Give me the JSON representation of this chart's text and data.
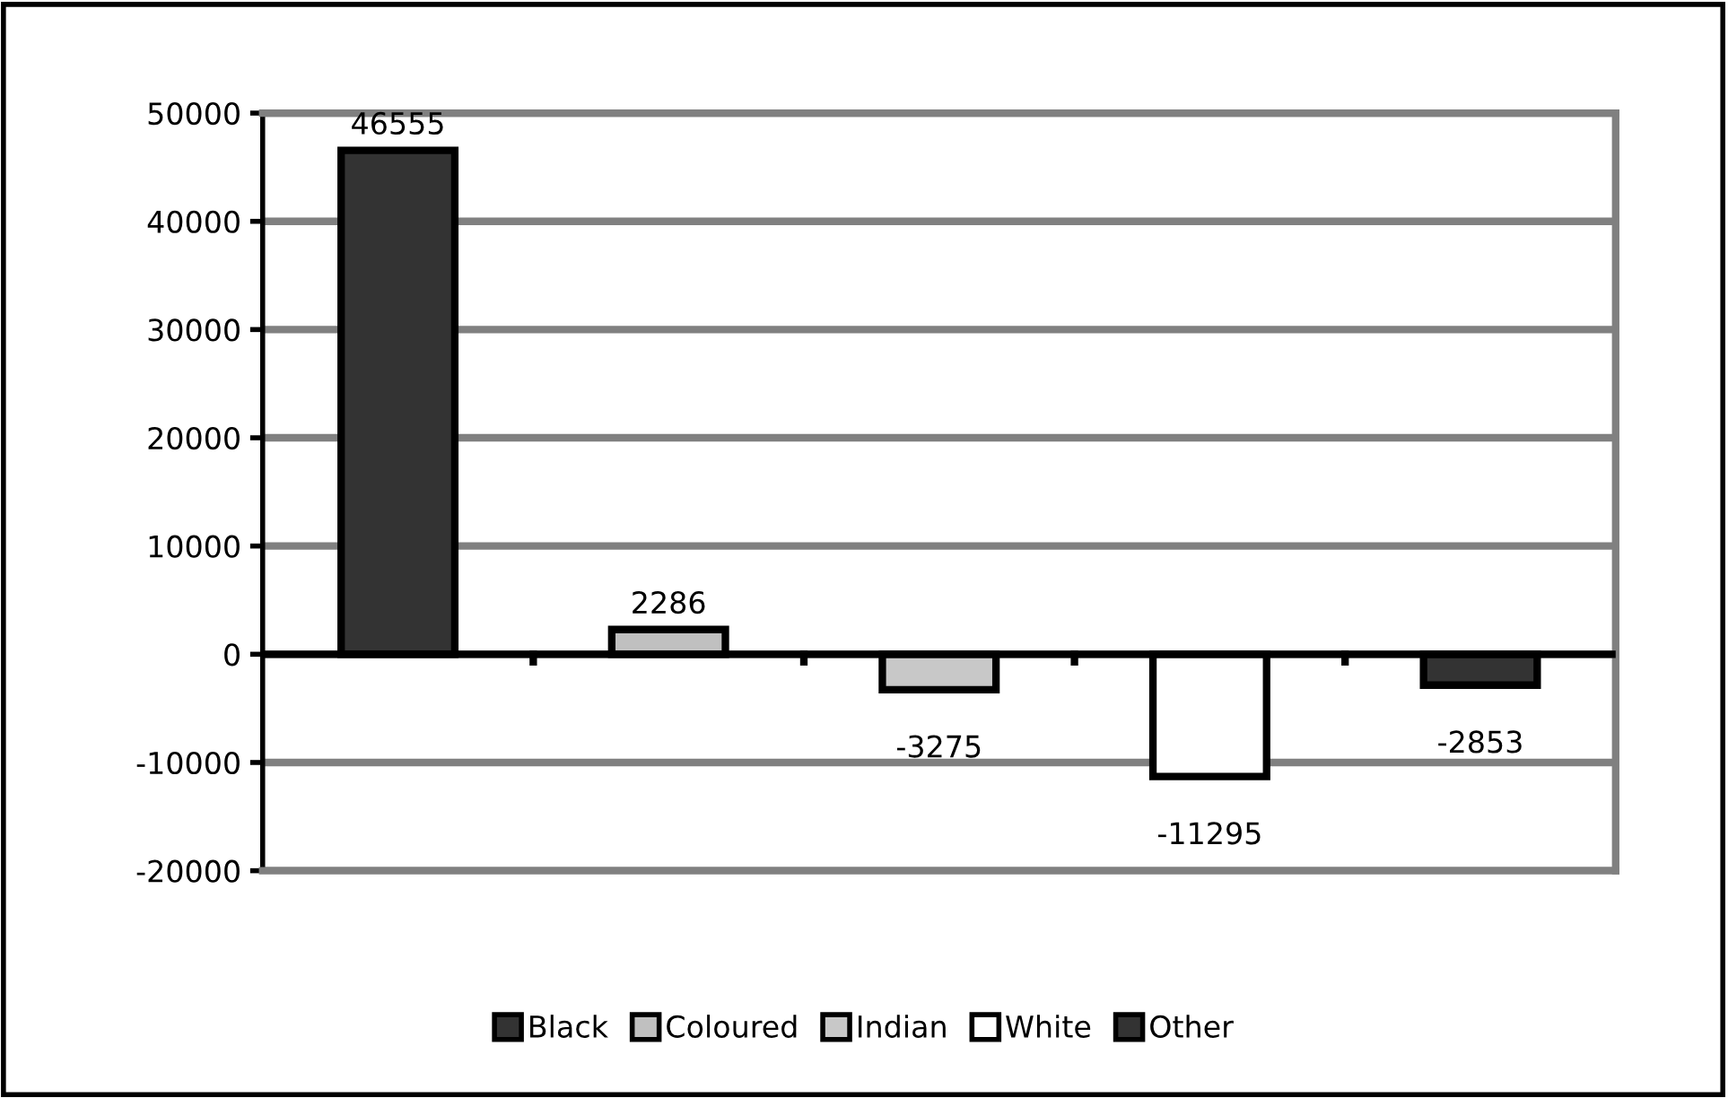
{
  "chart_data": {
    "type": "bar",
    "categories": [
      null,
      null,
      null,
      null,
      null
    ],
    "series": [
      {
        "name": "Black",
        "color": "#333333",
        "values": [
          46555,
          null,
          null,
          null,
          null
        ]
      },
      {
        "name": "Coloured",
        "color": "#c0c0c0",
        "values": [
          null,
          2286,
          null,
          null,
          null
        ]
      },
      {
        "name": "Indian",
        "color": "#c8c8c8",
        "values": [
          null,
          null,
          -3275,
          null,
          null
        ]
      },
      {
        "name": "White",
        "color": "#ffffff",
        "values": [
          null,
          null,
          null,
          -11295,
          null
        ]
      },
      {
        "name": "Other",
        "color": "#333333",
        "values": [
          null,
          null,
          null,
          null,
          -2853
        ]
      }
    ],
    "ylim": [
      -20000,
      50000
    ],
    "yticks": [
      -20000,
      -10000,
      0,
      10000,
      20000,
      30000,
      40000,
      50000
    ],
    "grid": "y",
    "legend": "bottom",
    "data_labels": true
  }
}
